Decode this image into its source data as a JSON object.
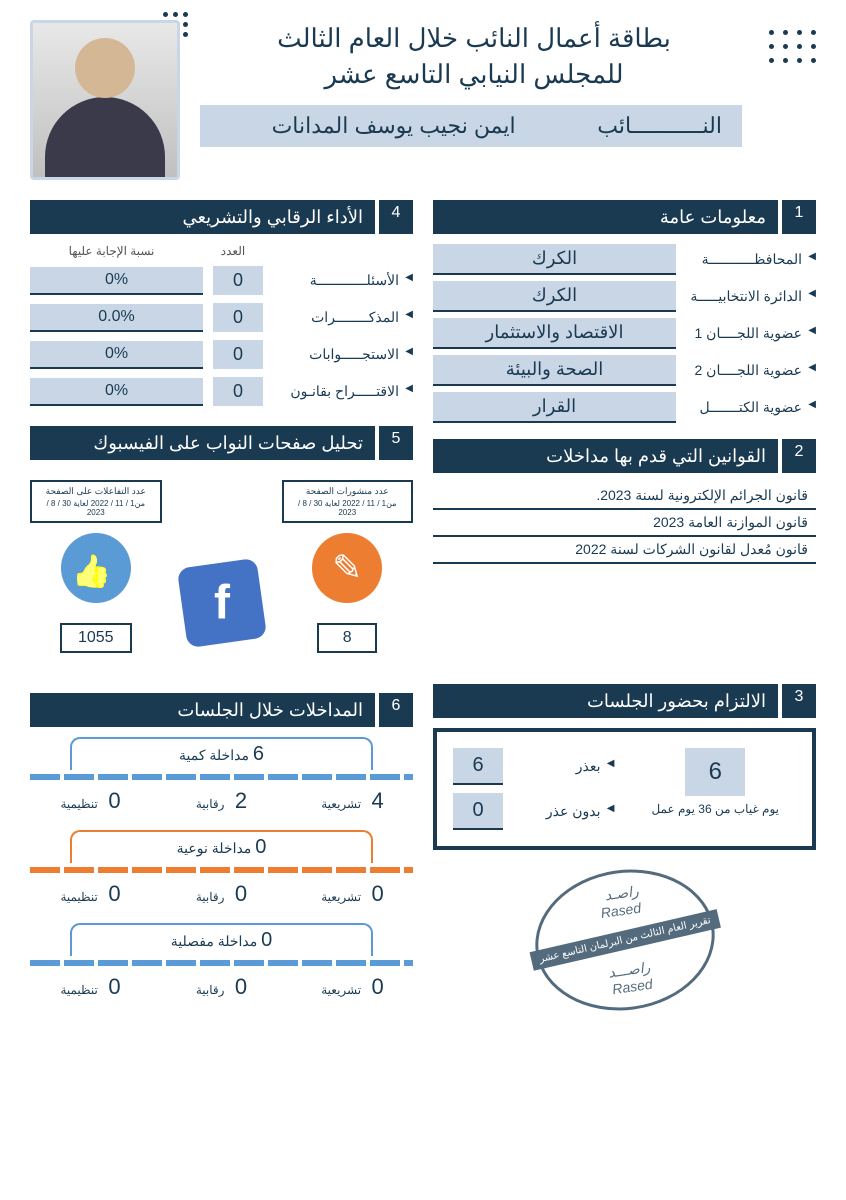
{
  "header": {
    "title_line1": "بطاقة أعمال النائب خلال العام الثالث",
    "title_line2": "للمجلس النيابي التاسع عشر",
    "name_label": "النـــــــــــائب",
    "name_value": "ايمن نجيب يوسف المدانات"
  },
  "colors": {
    "dark_navy": "#1a3a52",
    "light_blue": "#c8d6e5",
    "fb_blue": "#5b9bd5",
    "fb_dark_blue": "#4472c4",
    "orange": "#ed7d31"
  },
  "section1": {
    "num": "1",
    "title": "معلومات عامة",
    "rows": [
      {
        "label": "المحافظـــــــــــة",
        "value": "الكرك"
      },
      {
        "label": "الدائرة الانتخابيـــــة",
        "value": "الكرك"
      },
      {
        "label": "عضوية اللجــــان 1",
        "value": "الاقتصاد والاستثمار"
      },
      {
        "label": "عضوية اللجــــان 2",
        "value": "الصحة والبيئة"
      },
      {
        "label": "عضوية الكتـــــــل",
        "value": "القرار"
      }
    ]
  },
  "section2": {
    "num": "2",
    "title": "القوانين التي قدم بها مداخلات",
    "laws": [
      "قانون الجرائم الإلكترونية لسنة 2023.",
      "قانون الموازنة العامة 2023",
      "قانون مُعدل لقانون الشركات لسنة 2022"
    ]
  },
  "section3": {
    "num": "3",
    "title": "الالتزام بحضور الجلسات",
    "absent_days": "6",
    "absent_sub": "يوم غياب من 36 يوم عمل",
    "with_excuse_label": "بعذر",
    "with_excuse": "6",
    "without_excuse_label": "بدون عذر",
    "without_excuse": "0"
  },
  "section4": {
    "num": "4",
    "title": "الأداء الرقابي والتشريعي",
    "head_count": "العدد",
    "head_rate": "نسبة الإجابة عليها",
    "rows": [
      {
        "label": "الأسئلــــــــــــة",
        "count": "0",
        "rate": "0%"
      },
      {
        "label": "المذكــــــــرات",
        "count": "0",
        "rate": "0.0%"
      },
      {
        "label": "الاستجـــــوابات",
        "count": "0",
        "rate": "0%"
      },
      {
        "label": "الاقتـــــراح بقانـون",
        "count": "0",
        "rate": "0%"
      }
    ]
  },
  "section5": {
    "num": "5",
    "title": "تحليل صفحات النواب على الفيسبوك",
    "posts_label": "عدد منشورات الصفحة",
    "date_range": "من1 / 11 / 2022 لغاية 30 / 8 / 2023",
    "posts_value": "8",
    "interactions_label": "عدد التفاعلات على الصفحة",
    "interactions_value": "1055"
  },
  "section6": {
    "num": "6",
    "title": "المداخلات خلال الجلسات",
    "groups": [
      {
        "label": "مداخلة كمية",
        "total": "6",
        "color": "blue",
        "cells": [
          {
            "label": "تشريعية",
            "val": "4"
          },
          {
            "label": "رقابية",
            "val": "2"
          },
          {
            "label": "تنظيمية",
            "val": "0"
          }
        ]
      },
      {
        "label": "مداخلة نوعية",
        "total": "0",
        "color": "orange",
        "cells": [
          {
            "label": "تشريعية",
            "val": "0"
          },
          {
            "label": "رقابية",
            "val": "0"
          },
          {
            "label": "تنظيمية",
            "val": "0"
          }
        ]
      },
      {
        "label": "مداخلة مفصلية",
        "total": "0",
        "color": "blue",
        "cells": [
          {
            "label": "تشريعية",
            "val": "0"
          },
          {
            "label": "رقابية",
            "val": "0"
          },
          {
            "label": "تنظيمية",
            "val": "0"
          }
        ]
      }
    ]
  },
  "stamp": {
    "top_ar": "راصـد",
    "top_en": "Rased",
    "banner": "تقرير العام الثالث من البرلمان التاسع عشر",
    "bot_ar": "راصـــد",
    "bot_en": "Rased"
  }
}
